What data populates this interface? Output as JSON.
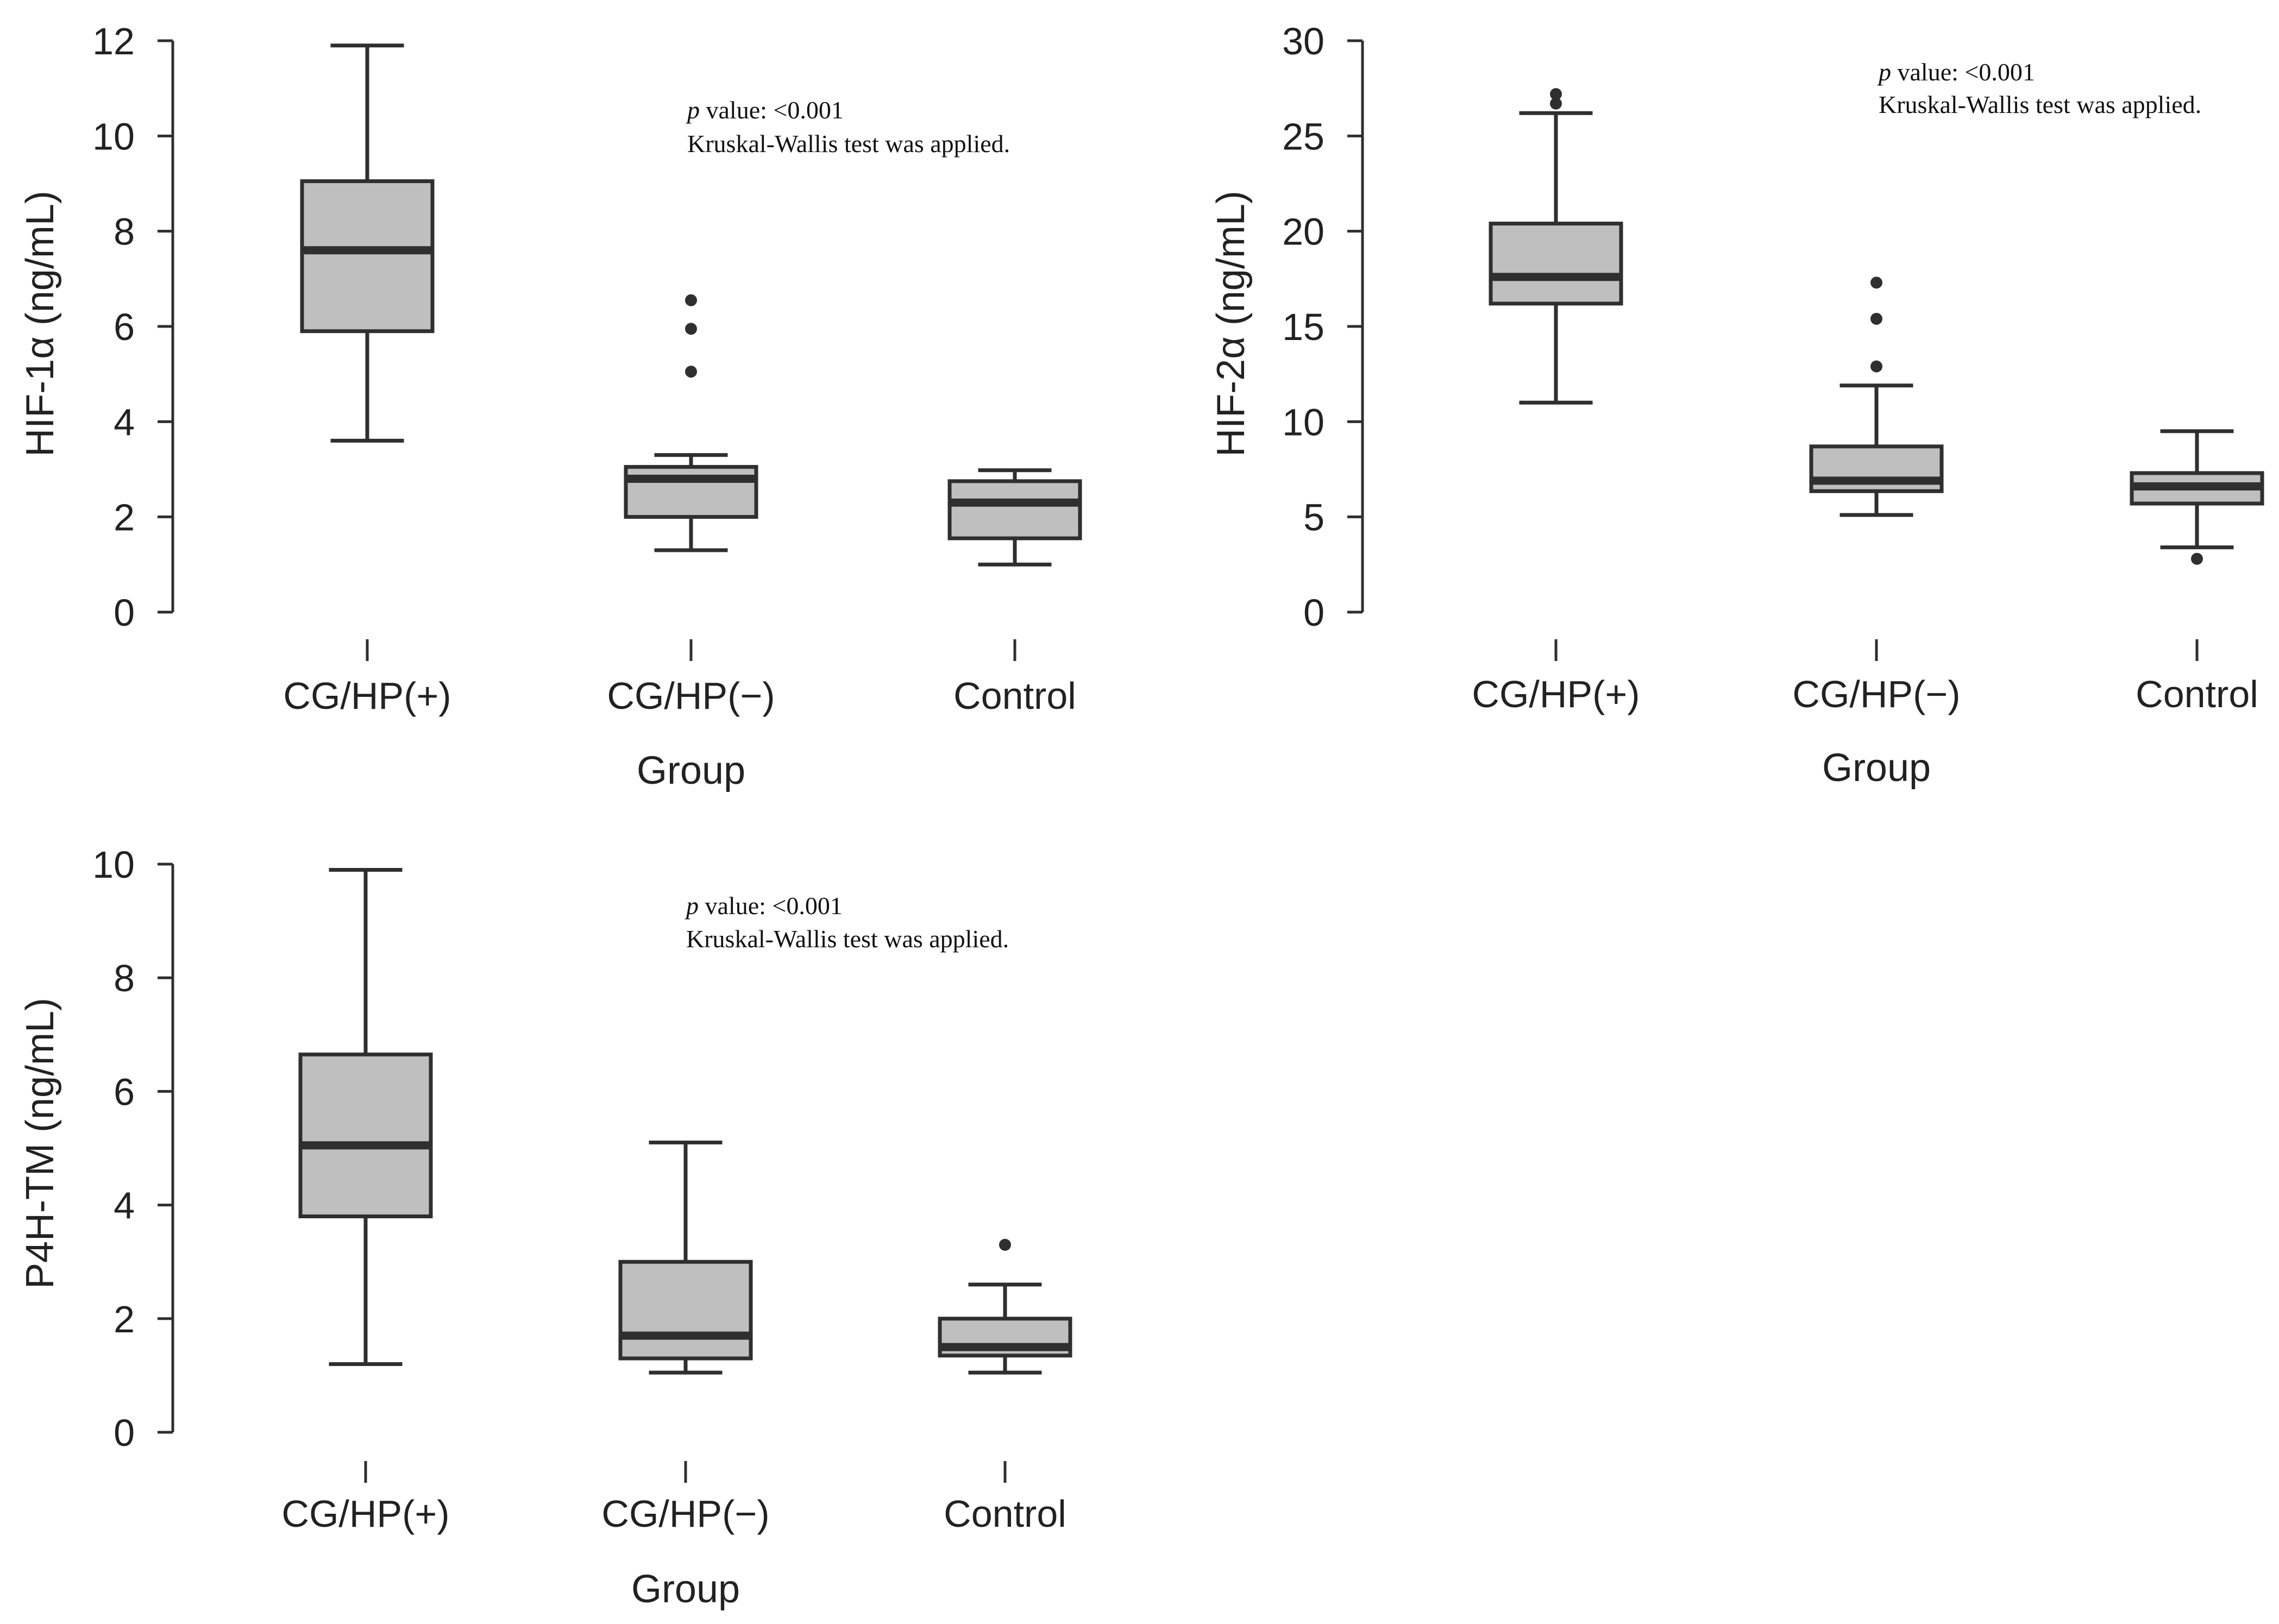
{
  "colors": {
    "box_fill": "#bfbfbf",
    "stroke": "#2f2f2f",
    "text": "#222222"
  },
  "chart_data": [
    {
      "type": "box",
      "id": "hif1a",
      "title": "",
      "xlabel": "Group",
      "ylabel": "HIF-1α (ng/mL)",
      "ylim": [
        0,
        12
      ],
      "yticks": [
        0,
        2,
        4,
        6,
        8,
        10,
        12
      ],
      "categories": [
        "CG/HP(+)",
        "CG/HP(−)",
        "Control"
      ],
      "boxes": [
        {
          "whisker_low": 3.6,
          "q1": 5.9,
          "median": 7.6,
          "q3": 9.05,
          "whisker_high": 11.9,
          "outliers": []
        },
        {
          "whisker_low": 1.3,
          "q1": 2.0,
          "median": 2.8,
          "q3": 3.05,
          "whisker_high": 3.3,
          "outliers": [
            5.05,
            5.95,
            6.55
          ]
        },
        {
          "whisker_low": 1.0,
          "q1": 1.55,
          "median": 2.3,
          "q3": 2.75,
          "whisker_high": 2.98,
          "outliers": []
        }
      ],
      "annotation": {
        "p_symbol": "p",
        "p_text": " value: <0.001",
        "test": "Kruskal-Wallis test was applied."
      }
    },
    {
      "type": "box",
      "id": "hif2a",
      "title": "",
      "xlabel": "Group",
      "ylabel": "HIF-2α (ng/mL)",
      "ylim": [
        0,
        30
      ],
      "yticks": [
        0,
        5,
        10,
        15,
        20,
        25,
        30
      ],
      "categories": [
        "CG/HP(+)",
        "CG/HP(−)",
        "Control"
      ],
      "boxes": [
        {
          "whisker_low": 11.0,
          "q1": 16.2,
          "median": 17.6,
          "q3": 20.4,
          "whisker_high": 26.2,
          "outliers": [
            26.7,
            27.2
          ]
        },
        {
          "whisker_low": 5.1,
          "q1": 6.35,
          "median": 6.9,
          "q3": 8.7,
          "whisker_high": 11.9,
          "outliers": [
            12.9,
            15.4,
            17.3
          ]
        },
        {
          "whisker_low": 3.4,
          "q1": 5.7,
          "median": 6.6,
          "q3": 7.3,
          "whisker_high": 9.5,
          "outliers": [
            2.8
          ]
        }
      ],
      "annotation": {
        "p_symbol": "p",
        "p_text": " value: <0.001",
        "test": "Kruskal-Wallis test was applied."
      }
    },
    {
      "type": "box",
      "id": "p4htm",
      "title": "",
      "xlabel": "Group",
      "ylabel": "P4H-TM (ng/mL)",
      "ylim": [
        0,
        10
      ],
      "yticks": [
        0,
        2,
        4,
        6,
        8,
        10
      ],
      "categories": [
        "CG/HP(+)",
        "CG/HP(−)",
        "Control"
      ],
      "boxes": [
        {
          "whisker_low": 1.2,
          "q1": 3.8,
          "median": 5.05,
          "q3": 6.65,
          "whisker_high": 9.9,
          "outliers": []
        },
        {
          "whisker_low": 1.05,
          "q1": 1.3,
          "median": 1.7,
          "q3": 3.0,
          "whisker_high": 5.1,
          "outliers": []
        },
        {
          "whisker_low": 1.05,
          "q1": 1.35,
          "median": 1.5,
          "q3": 2.0,
          "whisker_high": 2.6,
          "outliers": [
            3.3
          ]
        }
      ],
      "annotation": {
        "p_symbol": "p",
        "p_text": " value: <0.001",
        "test": "Kruskal-Wallis test was applied."
      }
    }
  ]
}
